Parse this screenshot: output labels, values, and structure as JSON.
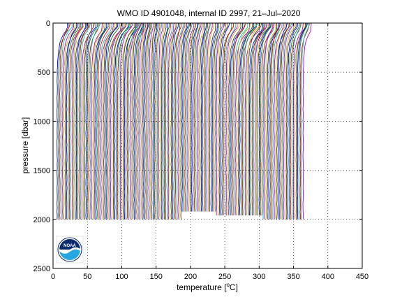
{
  "chart_data": {
    "type": "line",
    "title": "WMO ID 4901048, internal ID 2997, 21–Jul–2020",
    "xlabel": "temperature [",
    "xlabel_unit": "C]",
    "xlabel_degree": "o",
    "ylabel": "pressure [dbar]",
    "xlim": [
      0,
      450
    ],
    "ylim": [
      0,
      2500
    ],
    "y_reversed": true,
    "grid": true,
    "grid_style": "dotted",
    "xticks": [
      0,
      50,
      100,
      150,
      200,
      250,
      300,
      350,
      400,
      450
    ],
    "yticks": [
      0,
      500,
      1000,
      1500,
      2000,
      2500
    ],
    "waterfall": {
      "profile_count": 180,
      "offset_per_profile": 2.0,
      "first_profile_start": 3,
      "surface_temperature": 15,
      "deep_temperature": 3,
      "max_pressure": 2000,
      "colors": [
        "#0000ff",
        "#008000",
        "#ff0000",
        "#00bfbf",
        "#bf00bf",
        "#bfbf00",
        "#404040"
      ]
    }
  },
  "logo": {
    "name": "noaa-logo",
    "text": "NOAA",
    "colors": {
      "navy": "#0b2a6f",
      "sky": "#27a7e1",
      "white": "#ffffff"
    }
  }
}
